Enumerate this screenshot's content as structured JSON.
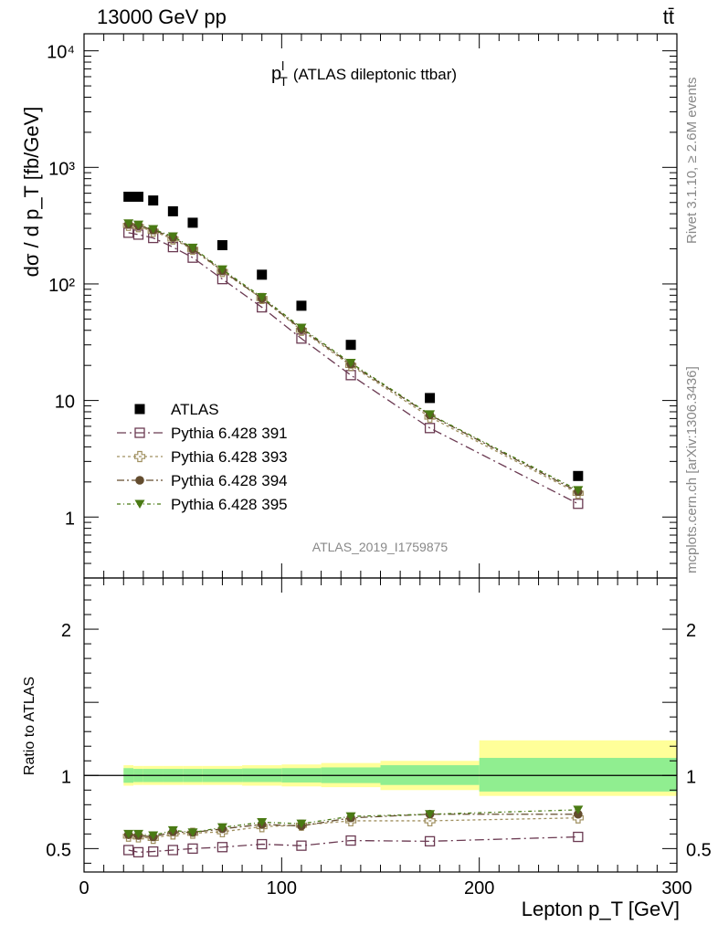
{
  "header": {
    "energy_label": "13000 GeV pp",
    "process_label": "tt̄",
    "plot_title_main": "p",
    "plot_title_sup": "l",
    "plot_title_sub": "T",
    "plot_title_rest": "(ATLAS dileptonic ttbar)",
    "analysis_id": "ATLAS_2019_I1759875",
    "side_rivet": "Rivet 3.1.10, ≥ 2.6M events",
    "side_mcplots": "mcplots.cern.ch [arXiv:1306.3436]"
  },
  "chart_data": [
    {
      "type": "scatter",
      "role": "main",
      "ylabel": "dσ / d p_T [fb/GeV]",
      "yscale": "log",
      "xlim": [
        0,
        300
      ],
      "ylim": [
        0.3,
        14000
      ],
      "y_tick_labels": [
        "1",
        "10",
        "10²",
        "10³",
        "10⁴"
      ],
      "y_tick_values": [
        1,
        10,
        100,
        1000,
        10000
      ],
      "x": [
        22.5,
        27.5,
        35,
        45,
        55,
        70,
        90,
        110,
        135,
        175,
        250
      ],
      "series": [
        {
          "name": "ATLAS",
          "marker": "filled-square",
          "color": "#000000",
          "values": [
            560,
            560,
            520,
            420,
            335,
            215,
            120,
            65,
            30,
            10.5,
            2.25
          ]
        },
        {
          "name": "Pythia 6.428 391",
          "marker": "open-square",
          "color": "#6b3a52",
          "values": [
            275,
            265,
            248,
            207,
            168,
            110,
            63,
            34,
            16.5,
            5.8,
            1.3
          ]
        },
        {
          "name": "Pythia 6.428 393",
          "marker": "open-cross",
          "color": "#a09060",
          "values": [
            318,
            310,
            283,
            243,
            198,
            128,
            75,
            40,
            20,
            7.2,
            1.6
          ]
        },
        {
          "name": "Pythia 6.428 394",
          "marker": "filled-circle",
          "color": "#634c2e",
          "values": [
            325,
            318,
            290,
            250,
            200,
            130,
            75,
            41,
            20.5,
            7.5,
            1.65
          ]
        },
        {
          "name": "Pythia 6.428 395",
          "marker": "filled-triangle-down",
          "color": "#4a7a14",
          "values": [
            330,
            322,
            295,
            255,
            204,
            133,
            77,
            42,
            21,
            7.6,
            1.7
          ]
        }
      ]
    },
    {
      "type": "scatter",
      "role": "ratio",
      "xlabel": "Lepton p_T [GeV]",
      "ylabel": "Ratio to ATLAS",
      "xlim": [
        0,
        300
      ],
      "ylim": [
        0.34,
        2.35
      ],
      "y_tick_values": [
        0.5,
        1,
        2
      ],
      "y_tick_labels": [
        "0.5",
        "1",
        "2"
      ],
      "x_tick_values": [
        0,
        100,
        200,
        300
      ],
      "x_tick_labels": [
        "0",
        "100",
        "200",
        "300"
      ],
      "x": [
        22.5,
        27.5,
        35,
        45,
        55,
        70,
        90,
        110,
        135,
        175,
        250
      ],
      "bands": {
        "edges": [
          20,
          25,
          30,
          40,
          50,
          60,
          80,
          100,
          120,
          150,
          200,
          300
        ],
        "inner": [
          [
            0.95,
            1.05
          ],
          [
            0.955,
            1.045
          ],
          [
            0.955,
            1.045
          ],
          [
            0.955,
            1.045
          ],
          [
            0.955,
            1.045
          ],
          [
            0.955,
            1.045
          ],
          [
            0.955,
            1.048
          ],
          [
            0.952,
            1.05
          ],
          [
            0.948,
            1.055
          ],
          [
            0.935,
            1.07
          ],
          [
            0.89,
            1.12
          ]
        ],
        "outer": [
          [
            0.93,
            1.07
          ],
          [
            0.935,
            1.065
          ],
          [
            0.935,
            1.065
          ],
          [
            0.935,
            1.065
          ],
          [
            0.935,
            1.065
          ],
          [
            0.935,
            1.065
          ],
          [
            0.93,
            1.07
          ],
          [
            0.925,
            1.075
          ],
          [
            0.92,
            1.085
          ],
          [
            0.9,
            1.1
          ],
          [
            0.86,
            1.24
          ]
        ],
        "inner_color": "#90ee90",
        "outer_color": "#ffff99"
      },
      "series": [
        {
          "name": "Pythia 6.428 391",
          "values": [
            0.49,
            0.475,
            0.48,
            0.49,
            0.5,
            0.51,
            0.53,
            0.52,
            0.555,
            0.55,
            0.58
          ]
        },
        {
          "name": "Pythia 6.428 393",
          "values": [
            0.585,
            0.58,
            0.57,
            0.6,
            0.605,
            0.615,
            0.65,
            0.66,
            0.69,
            0.69,
            0.71
          ]
        },
        {
          "name": "Pythia 6.428 394",
          "values": [
            0.595,
            0.59,
            0.58,
            0.615,
            0.61,
            0.635,
            0.665,
            0.655,
            0.71,
            0.735,
            0.735
          ]
        },
        {
          "name": "Pythia 6.428 395",
          "values": [
            0.6,
            0.6,
            0.59,
            0.625,
            0.61,
            0.645,
            0.68,
            0.67,
            0.72,
            0.735,
            0.765
          ]
        }
      ]
    }
  ]
}
